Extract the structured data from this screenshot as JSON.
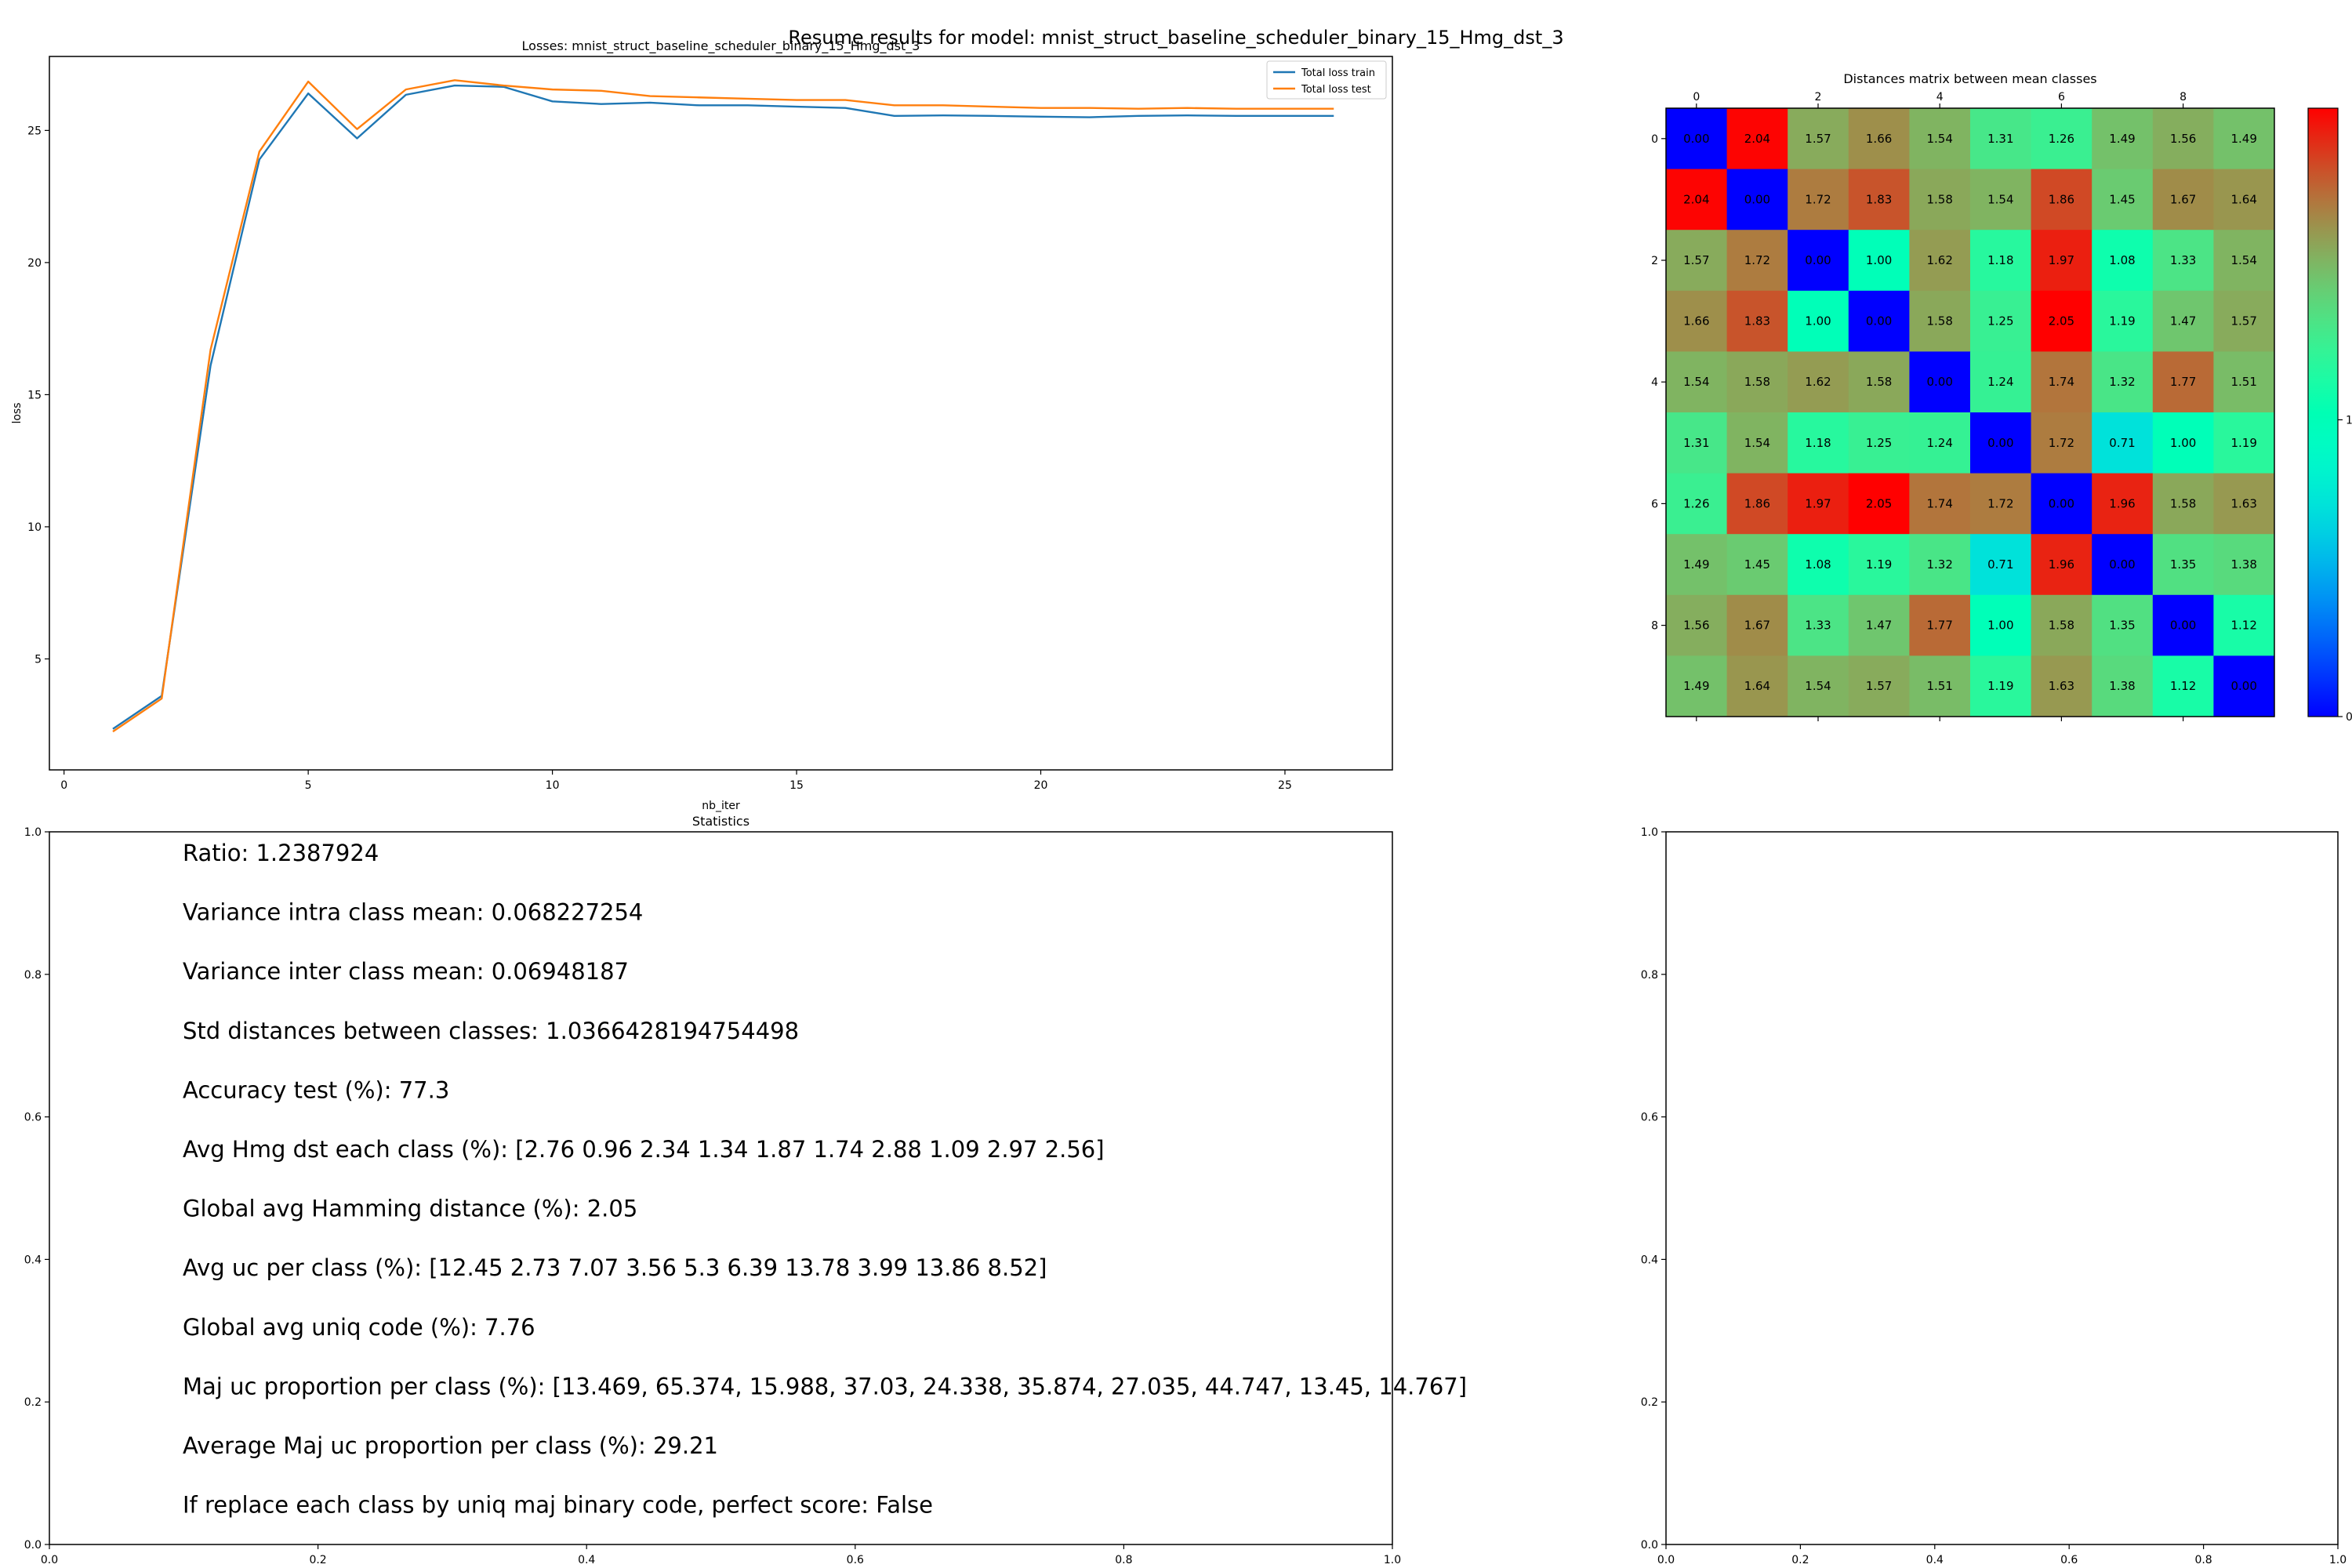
{
  "suptitle": "Resume results for model: mnist_struct_baseline_scheduler_binary_15_Hmg_dst_3",
  "chart_data": [
    {
      "type": "line",
      "title": "Losses: mnist_struct_baseline_scheduler_binary_15_Hmg_dst_3",
      "xlabel": "nb_iter",
      "ylabel": "loss",
      "xlim": [
        -0.3,
        27.2
      ],
      "ylim": [
        0.8,
        27.8
      ],
      "xticks": [
        0,
        5,
        10,
        15,
        20,
        25
      ],
      "yticks": [
        5,
        10,
        15,
        20,
        25
      ],
      "legend_position": "upper right",
      "x": [
        1,
        2,
        3,
        4,
        5,
        6,
        7,
        8,
        9,
        10,
        11,
        12,
        13,
        14,
        15,
        16,
        17,
        18,
        19,
        20,
        21,
        22,
        23,
        24,
        25,
        26
      ],
      "series": [
        {
          "name": "Total loss train",
          "color": "#1f77b4",
          "values": [
            2.35,
            3.6,
            16.1,
            23.9,
            26.4,
            24.7,
            26.35,
            26.7,
            26.65,
            26.1,
            26.0,
            26.05,
            25.95,
            25.95,
            25.9,
            25.85,
            25.55,
            25.57,
            25.55,
            25.52,
            25.5,
            25.55,
            25.57,
            25.55,
            25.55,
            25.55
          ]
        },
        {
          "name": "Total loss test",
          "color": "#ff7f0e",
          "values": [
            2.25,
            3.5,
            16.7,
            24.2,
            26.85,
            25.05,
            26.55,
            26.9,
            26.7,
            26.55,
            26.5,
            26.3,
            26.25,
            26.2,
            26.15,
            26.15,
            25.95,
            25.95,
            25.9,
            25.85,
            25.85,
            25.82,
            25.85,
            25.82,
            25.82,
            25.82
          ]
        }
      ]
    },
    {
      "type": "heatmap",
      "title": "Distances matrix between mean classes",
      "xticks": [
        0,
        2,
        4,
        6,
        8
      ],
      "yticks": [
        0,
        2,
        4,
        6,
        8
      ],
      "colormap": "rainbow",
      "vmin": 0.0,
      "vmax": 2.05,
      "colorbar_ticks": [
        0,
        1
      ],
      "matrix": [
        [
          0.0,
          2.04,
          1.57,
          1.66,
          1.54,
          1.31,
          1.26,
          1.49,
          1.56,
          1.49
        ],
        [
          2.04,
          0.0,
          1.72,
          1.83,
          1.58,
          1.54,
          1.86,
          1.45,
          1.67,
          1.64
        ],
        [
          1.57,
          1.72,
          0.0,
          1.0,
          1.62,
          1.18,
          1.97,
          1.08,
          1.33,
          1.54
        ],
        [
          1.66,
          1.83,
          1.0,
          0.0,
          1.58,
          1.25,
          2.05,
          1.19,
          1.47,
          1.57
        ],
        [
          1.54,
          1.58,
          1.62,
          1.58,
          0.0,
          1.24,
          1.74,
          1.32,
          1.77,
          1.51
        ],
        [
          1.31,
          1.54,
          1.18,
          1.25,
          1.24,
          0.0,
          1.72,
          0.71,
          1.0,
          1.19
        ],
        [
          1.26,
          1.86,
          1.97,
          2.05,
          1.74,
          1.72,
          0.0,
          1.96,
          1.58,
          1.63
        ],
        [
          1.49,
          1.45,
          1.08,
          1.19,
          1.32,
          0.71,
          1.96,
          0.0,
          1.35,
          1.38
        ],
        [
          1.56,
          1.67,
          1.33,
          1.47,
          1.77,
          1.0,
          1.58,
          1.35,
          0.0,
          1.12
        ],
        [
          1.49,
          1.64,
          1.54,
          1.57,
          1.51,
          1.19,
          1.63,
          1.38,
          1.12,
          0.0
        ]
      ]
    },
    {
      "type": "table",
      "title": "Statistics",
      "xticks": [
        "0.0",
        "0.2",
        "0.4",
        "0.6",
        "0.8",
        "1.0"
      ],
      "yticks": [
        "0.0",
        "0.2",
        "0.4",
        "0.6",
        "0.8",
        "1.0"
      ],
      "lines": [
        "Ratio: 1.2387924",
        "Variance intra class mean: 0.068227254",
        "Variance inter class mean: 0.06948187",
        "Std distances between classes: 1.0366428194754498",
        "Accuracy test (%): 77.3",
        "Avg Hmg dst each class (%): [2.76 0.96 2.34 1.34 1.87 1.74 2.88 1.09 2.97 2.56]",
        "Global avg Hamming distance (%): 2.05",
        "Avg uc per class (%): [12.45  2.73  7.07  3.56  5.3   6.39 13.78  3.99 13.86  8.52]",
        "Global avg uniq code (%): 7.76",
        "Maj uc proportion per class (%): [13.469, 65.374, 15.988, 37.03, 24.338, 35.874, 27.035, 44.747, 13.45, 14.767]",
        "Average Maj uc proportion per class (%): 29.21",
        "If replace each class by uniq maj binary code, perfect score: False"
      ]
    },
    {
      "type": "table",
      "title": "",
      "xticks": [
        "0.0",
        "0.2",
        "0.4",
        "0.6",
        "0.8",
        "1.0"
      ],
      "yticks": [
        "0.0",
        "0.2",
        "0.4",
        "0.6",
        "0.8",
        "1.0"
      ],
      "lines": []
    }
  ]
}
